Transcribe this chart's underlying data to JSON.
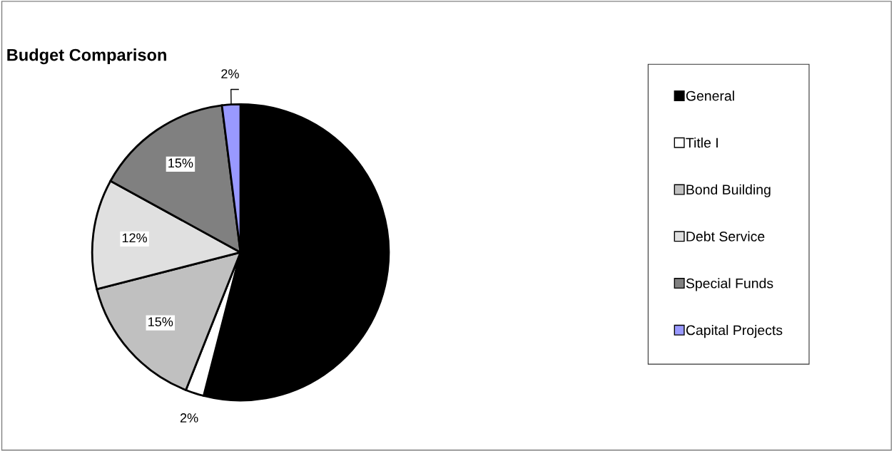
{
  "chart_data": {
    "type": "pie",
    "title": "Budget Comparison",
    "categories": [
      "General",
      "Title I",
      "Bond Building",
      "Debt Service",
      "Special Funds",
      "Capital Projects"
    ],
    "values": [
      54,
      2,
      15,
      12,
      15,
      2
    ],
    "value_labels": [
      null,
      "2%",
      "15%",
      "12%",
      "15%",
      "2%"
    ],
    "colors": [
      "#000000",
      "#ffffff",
      "#c0c0c0",
      "#e0e0e0",
      "#808080",
      "#9999ff"
    ],
    "legend": "right"
  }
}
